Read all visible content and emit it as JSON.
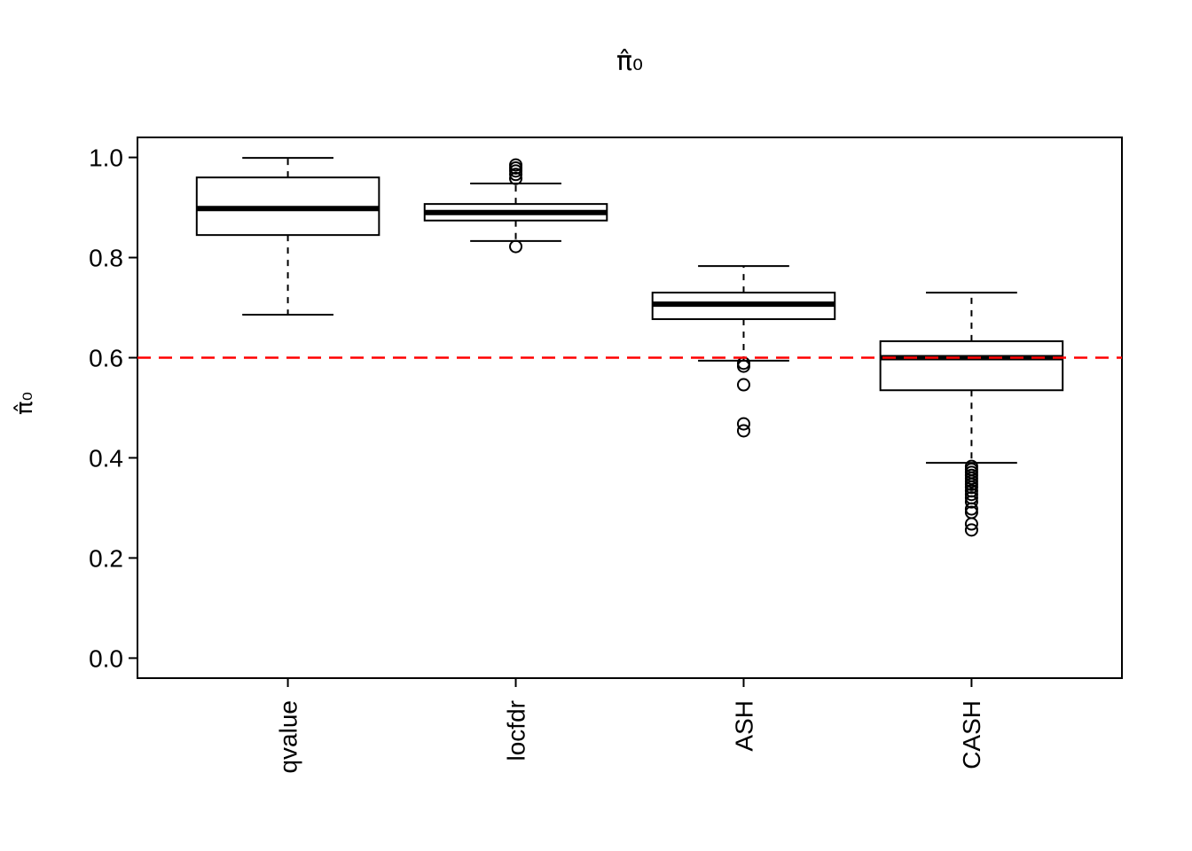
{
  "chart_data": {
    "type": "boxplot",
    "title": "π̂₀",
    "ylabel": "π̂₀",
    "xlabel": "",
    "categories": [
      "qvalue",
      "locfdr",
      "ASH",
      "CASH"
    ],
    "ylim": [
      0,
      1
    ],
    "yticks": [
      0,
      0.2,
      0.4,
      0.6,
      0.8,
      1.0
    ],
    "ytick_labels": [
      "0.0",
      "0.2",
      "0.4",
      "0.6",
      "0.8",
      "1.0"
    ],
    "grid": false,
    "reference_line": {
      "y": 0.6,
      "color": "#FF0000",
      "style": "dashed"
    },
    "series": [
      {
        "name": "qvalue",
        "whisker_low": 0.686,
        "q1": 0.845,
        "median": 0.898,
        "q3": 0.96,
        "whisker_high": 0.999,
        "outliers": []
      },
      {
        "name": "locfdr",
        "whisker_low": 0.833,
        "q1": 0.874,
        "median": 0.89,
        "q3": 0.907,
        "whisker_high": 0.948,
        "outliers": [
          0.985,
          0.979,
          0.973,
          0.966,
          0.958,
          0.822
        ]
      },
      {
        "name": "ASH",
        "whisker_low": 0.594,
        "q1": 0.677,
        "median": 0.707,
        "q3": 0.73,
        "whisker_high": 0.783,
        "outliers": [
          0.589,
          0.583,
          0.546,
          0.468,
          0.454
        ]
      },
      {
        "name": "CASH",
        "whisker_low": 0.39,
        "q1": 0.535,
        "median": 0.6,
        "q3": 0.633,
        "whisker_high": 0.73,
        "outliers": [
          0.383,
          0.377,
          0.371,
          0.365,
          0.359,
          0.353,
          0.347,
          0.341,
          0.334,
          0.327,
          0.32,
          0.312,
          0.298,
          0.291,
          0.268,
          0.256
        ]
      }
    ]
  }
}
